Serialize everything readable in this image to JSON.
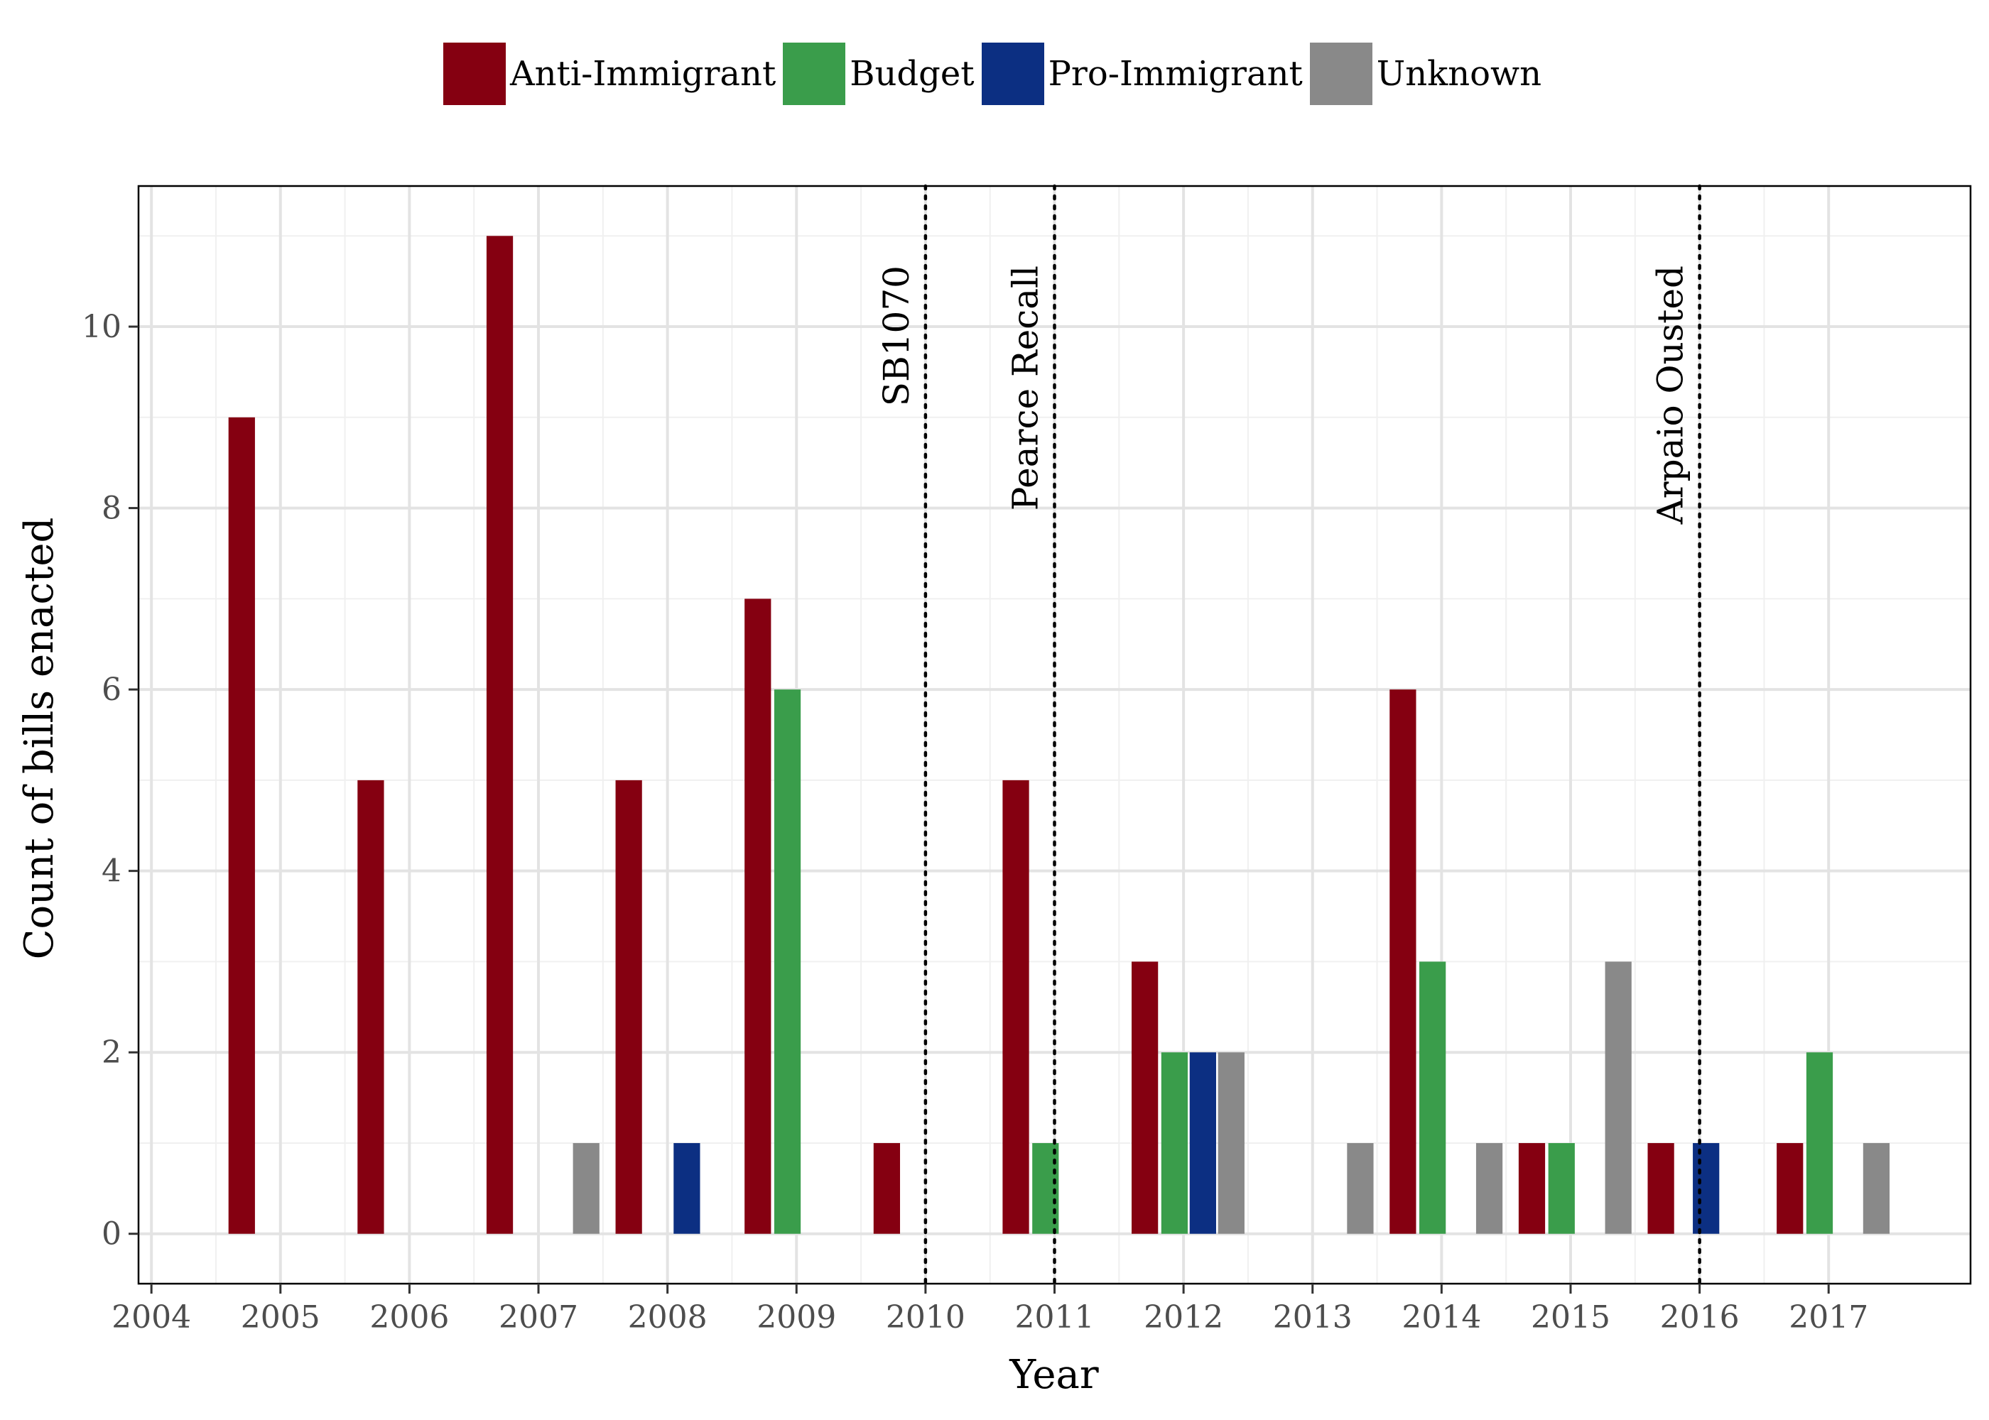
{
  "chart_data": {
    "type": "bar",
    "title": "",
    "xlabel": "Year",
    "ylabel": "Count of bills enacted",
    "xlim": [
      2003.9,
      2018.1
    ],
    "ylim": [
      -0.55,
      11.55
    ],
    "x_ticks": [
      2004,
      2005,
      2006,
      2007,
      2008,
      2009,
      2010,
      2011,
      2012,
      2013,
      2014,
      2015,
      2016,
      2017
    ],
    "y_ticks": [
      0,
      2,
      4,
      6,
      8,
      10
    ],
    "grid": true,
    "legend_position": "top",
    "series": [
      {
        "name": "Anti-Immigrant",
        "color": "#850011",
        "points": [
          [
            2004.7,
            9
          ],
          [
            2005.7,
            5
          ],
          [
            2006.7,
            11
          ],
          [
            2007.7,
            5
          ],
          [
            2008.7,
            7
          ],
          [
            2009.7,
            1
          ],
          [
            2010.7,
            5
          ],
          [
            2011.7,
            3
          ],
          [
            2013.7,
            6
          ],
          [
            2014.7,
            1
          ],
          [
            2015.7,
            1
          ],
          [
            2016.7,
            1
          ]
        ]
      },
      {
        "name": "Budget",
        "color": "#3a9d4b",
        "points": [
          [
            2008.93,
            6
          ],
          [
            2010.93,
            1
          ],
          [
            2011.93,
            2
          ],
          [
            2013.93,
            3
          ],
          [
            2014.93,
            1
          ],
          [
            2016.93,
            2
          ]
        ]
      },
      {
        "name": "Pro-Immigrant",
        "color": "#0c2f82",
        "points": [
          [
            2008.15,
            1
          ],
          [
            2012.15,
            2
          ],
          [
            2016.05,
            1
          ]
        ]
      },
      {
        "name": "Unknown",
        "color": "#898989",
        "points": [
          [
            2007.37,
            1
          ],
          [
            2012.37,
            2
          ],
          [
            2013.37,
            1
          ],
          [
            2014.37,
            1
          ],
          [
            2015.37,
            3
          ],
          [
            2017.37,
            1
          ]
        ]
      }
    ],
    "annotations": [
      {
        "x": 2010,
        "label": "SB1070"
      },
      {
        "x": 2011,
        "label": "Pearce Recall"
      },
      {
        "x": 2016,
        "label": "Arpaio Ousted"
      }
    ]
  }
}
